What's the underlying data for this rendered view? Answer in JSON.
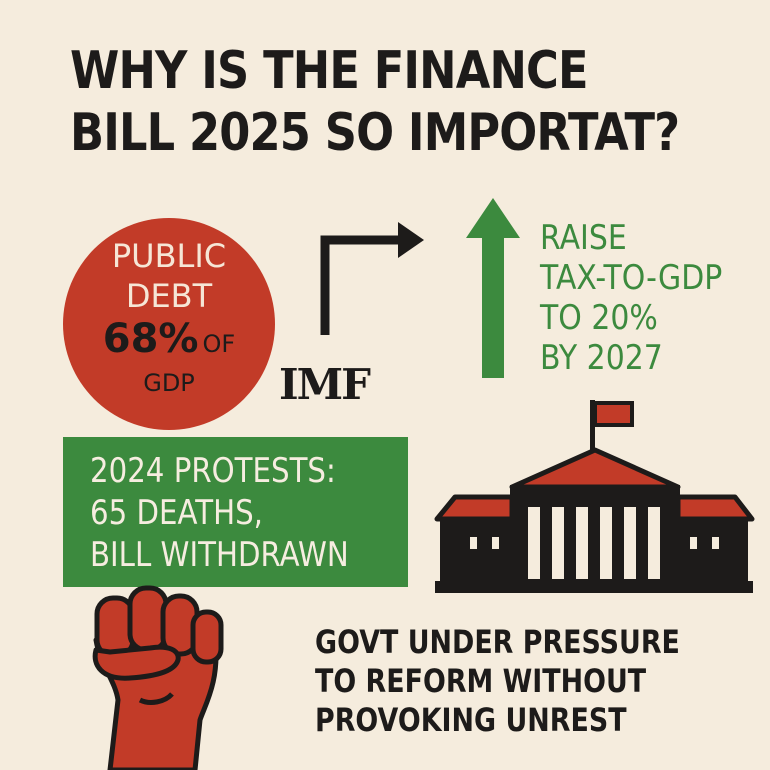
{
  "title": {
    "line1": "WHY IS THE FINANCE",
    "line2": "BILL 2025 SO IMPORTAT?"
  },
  "debt": {
    "line1": "PUBLIC",
    "line2": "DEBT",
    "value": "68%",
    "unit_of": "OF",
    "unit_gdp": "GDP"
  },
  "imf": {
    "label": "IMF"
  },
  "target": {
    "line1": "RAISE",
    "line2": "TAX-TO-GDP",
    "line3": "TO 20%",
    "line4": "BY 2027"
  },
  "protests": {
    "line1": "2024 PROTESTS:",
    "line2": "65 DEATHS,",
    "line3": "BILL WITHDRAWN"
  },
  "pressure": {
    "line1": "GOVT UNDER PRESSURE",
    "line2": "TO REFORM WITHOUT",
    "line3": "PROVOKING UNREST"
  },
  "colors": {
    "background": "#f5ecdd",
    "red": "#c23b28",
    "green": "#3c8a3e",
    "dark": "#1d1b1a"
  },
  "icons": [
    "turn-arrow-icon",
    "up-arrow-icon",
    "parliament-building-icon",
    "raised-fist-icon"
  ]
}
